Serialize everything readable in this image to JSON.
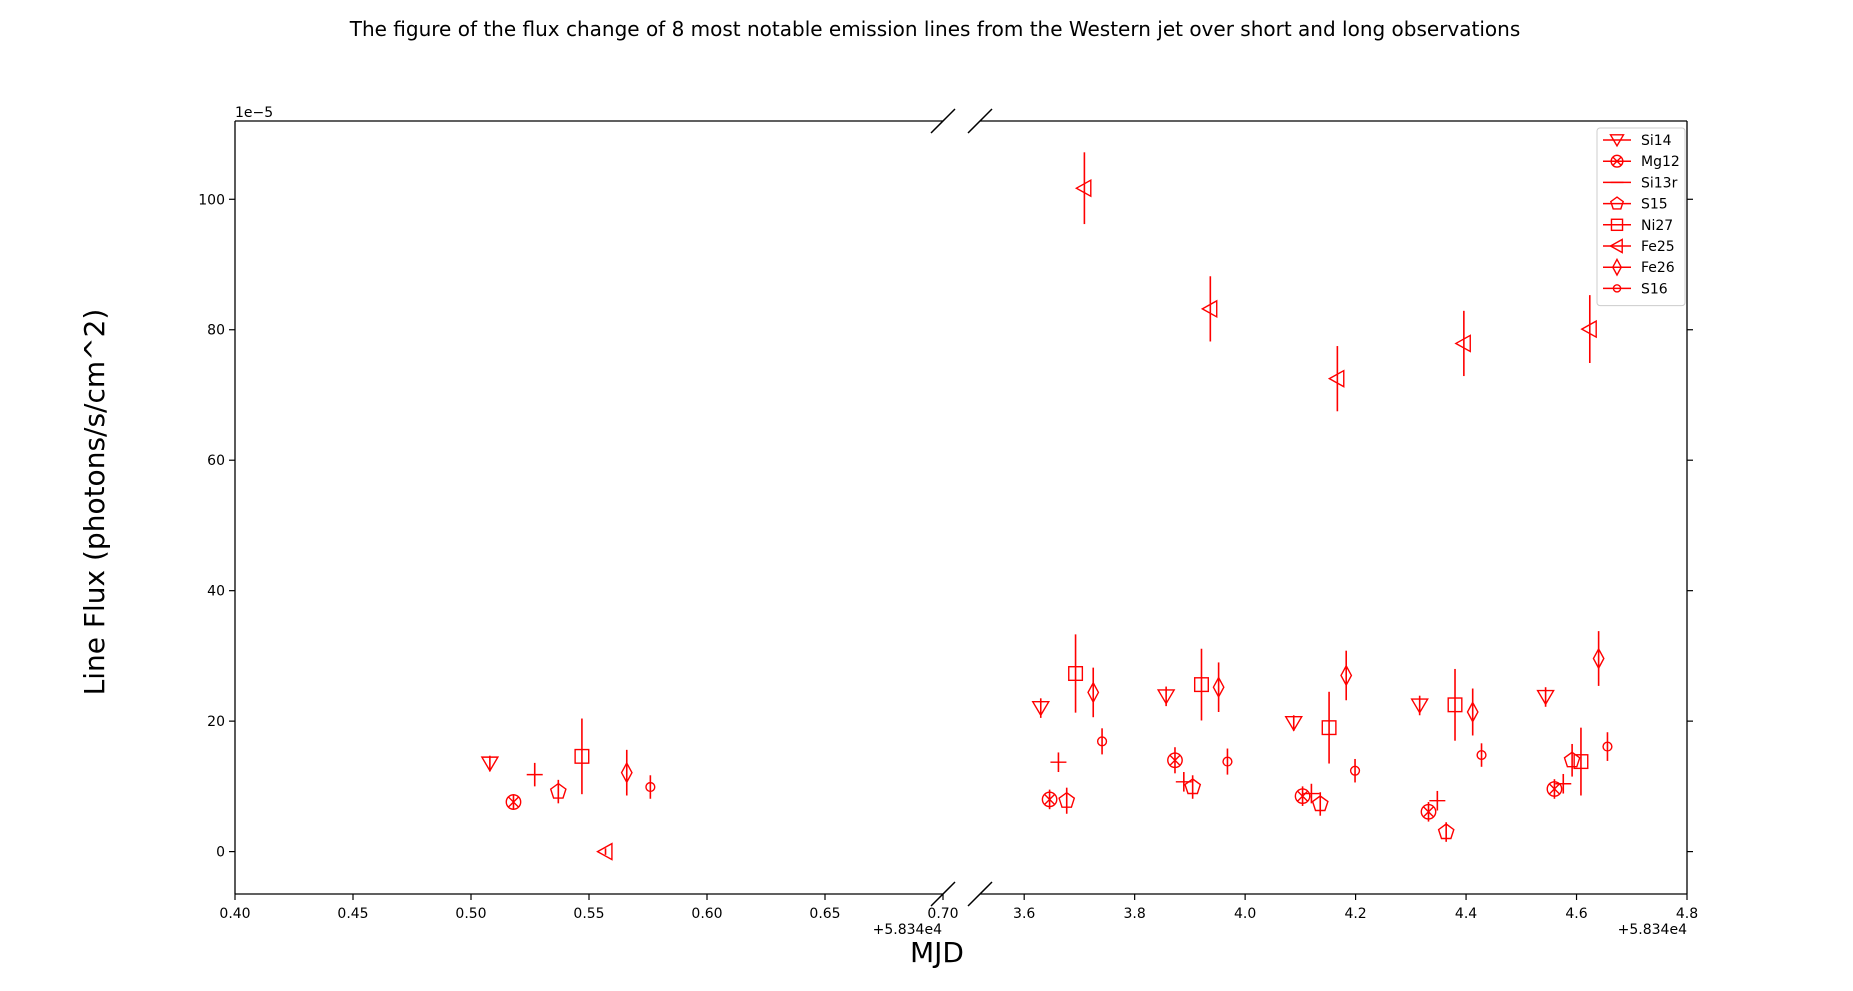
{
  "chart_data": {
    "type": "scatter",
    "title": "The figure of the flux change of 8 most notable emission lines from the Western jet over short and long observations",
    "xlabel": "MJD",
    "ylabel": "Line Flux (photons/s/cm^2)",
    "y_scale_note": "1e−5",
    "x_offset_label": "+5.834e4",
    "broken_x_axis": true,
    "grid": false,
    "legend_position": "top-right",
    "color": "#ff0000",
    "panels": [
      {
        "xlim": [
          0.4,
          0.7
        ],
        "ticks": [
          0.4,
          0.45,
          0.5,
          0.55,
          0.6,
          0.65,
          0.7
        ],
        "tick_labels": [
          "0.40",
          "0.45",
          "0.50",
          "0.55",
          "0.60",
          "0.65",
          "0.70"
        ]
      },
      {
        "xlim": [
          3.52,
          4.8
        ],
        "ticks": [
          3.6,
          3.8,
          4.0,
          4.2,
          4.4,
          4.6,
          4.8
        ],
        "tick_labels": [
          "3.6",
          "3.8",
          "4.0",
          "4.2",
          "4.4",
          "4.6",
          "4.8"
        ]
      }
    ],
    "ylim": [
      -6.5,
      112
    ],
    "yticks": [
      0,
      20,
      40,
      60,
      80,
      100
    ],
    "ytick_labels": [
      "0",
      "20",
      "40",
      "60",
      "80",
      "100"
    ],
    "series": [
      {
        "name": "Si14",
        "marker": "triangle-down",
        "points": [
          {
            "x": 0.508,
            "y": 13.5,
            "err": 1.2
          },
          {
            "x": 3.63,
            "y": 22.0,
            "err": 1.5
          },
          {
            "x": 3.857,
            "y": 23.8,
            "err": 1.5
          },
          {
            "x": 4.088,
            "y": 19.7,
            "err": 1.2
          },
          {
            "x": 4.316,
            "y": 22.4,
            "err": 1.5
          },
          {
            "x": 4.544,
            "y": 23.7,
            "err": 1.5
          }
        ]
      },
      {
        "name": "Mg12",
        "marker": "circle-x",
        "points": [
          {
            "x": 0.518,
            "y": 7.6,
            "err": 1.2
          },
          {
            "x": 3.646,
            "y": 8.0,
            "err": 1.5
          },
          {
            "x": 3.873,
            "y": 14.0,
            "err": 2.0
          },
          {
            "x": 4.104,
            "y": 8.5,
            "err": 1.5
          },
          {
            "x": 4.332,
            "y": 6.1,
            "err": 1.5
          },
          {
            "x": 4.56,
            "y": 9.6,
            "err": 1.5
          }
        ]
      },
      {
        "name": "Si13r",
        "marker": "plus-tick",
        "points": [
          {
            "x": 0.527,
            "y": 11.8,
            "err": 1.8
          },
          {
            "x": 3.662,
            "y": 13.7,
            "err": 1.5
          },
          {
            "x": 3.889,
            "y": 10.7,
            "err": 1.5
          },
          {
            "x": 4.12,
            "y": 8.9,
            "err": 1.5
          },
          {
            "x": 4.348,
            "y": 7.8,
            "err": 1.5
          },
          {
            "x": 4.576,
            "y": 10.4,
            "err": 1.5
          }
        ]
      },
      {
        "name": "S15",
        "marker": "pentagon",
        "points": [
          {
            "x": 0.537,
            "y": 9.2,
            "err": 1.8
          },
          {
            "x": 3.677,
            "y": 7.8,
            "err": 2.0
          },
          {
            "x": 3.905,
            "y": 9.9,
            "err": 1.8
          },
          {
            "x": 4.136,
            "y": 7.3,
            "err": 1.8
          },
          {
            "x": 4.364,
            "y": 3.0,
            "err": 1.5
          },
          {
            "x": 4.592,
            "y": 14.0,
            "err": 2.5
          }
        ]
      },
      {
        "name": "Ni27",
        "marker": "square",
        "points": [
          {
            "x": 0.547,
            "y": 14.6,
            "err": 5.8
          },
          {
            "x": 3.693,
            "y": 27.3,
            "err": 6.0
          },
          {
            "x": 3.921,
            "y": 25.6,
            "err": 5.5
          },
          {
            "x": 4.152,
            "y": 19.0,
            "err": 5.5
          },
          {
            "x": 4.38,
            "y": 22.5,
            "err": 5.5
          },
          {
            "x": 4.608,
            "y": 13.8,
            "err": 5.2
          }
        ]
      },
      {
        "name": "Fe25",
        "marker": "triangle-left",
        "points": [
          {
            "x": 0.557,
            "y": 0.0,
            "err": 0.5
          },
          {
            "x": 3.709,
            "y": 101.7,
            "err": 5.5
          },
          {
            "x": 3.937,
            "y": 83.2,
            "err": 5.0
          },
          {
            "x": 4.167,
            "y": 72.5,
            "err": 5.0
          },
          {
            "x": 4.396,
            "y": 77.9,
            "err": 5.0
          },
          {
            "x": 4.624,
            "y": 80.1,
            "err": 5.2
          }
        ]
      },
      {
        "name": "Fe26",
        "marker": "diamond",
        "points": [
          {
            "x": 0.566,
            "y": 12.1,
            "err": 3.5
          },
          {
            "x": 3.725,
            "y": 24.4,
            "err": 3.8
          },
          {
            "x": 3.952,
            "y": 25.2,
            "err": 3.8
          },
          {
            "x": 4.183,
            "y": 27.0,
            "err": 3.8
          },
          {
            "x": 4.412,
            "y": 21.4,
            "err": 3.6
          },
          {
            "x": 4.64,
            "y": 29.6,
            "err": 4.2
          }
        ]
      },
      {
        "name": "S16",
        "marker": "small-circle",
        "points": [
          {
            "x": 0.576,
            "y": 9.9,
            "err": 1.8
          },
          {
            "x": 3.741,
            "y": 16.9,
            "err": 2.0
          },
          {
            "x": 3.968,
            "y": 13.8,
            "err": 2.0
          },
          {
            "x": 4.199,
            "y": 12.4,
            "err": 1.8
          },
          {
            "x": 4.428,
            "y": 14.8,
            "err": 1.8
          },
          {
            "x": 4.656,
            "y": 16.1,
            "err": 2.2
          }
        ]
      }
    ]
  }
}
